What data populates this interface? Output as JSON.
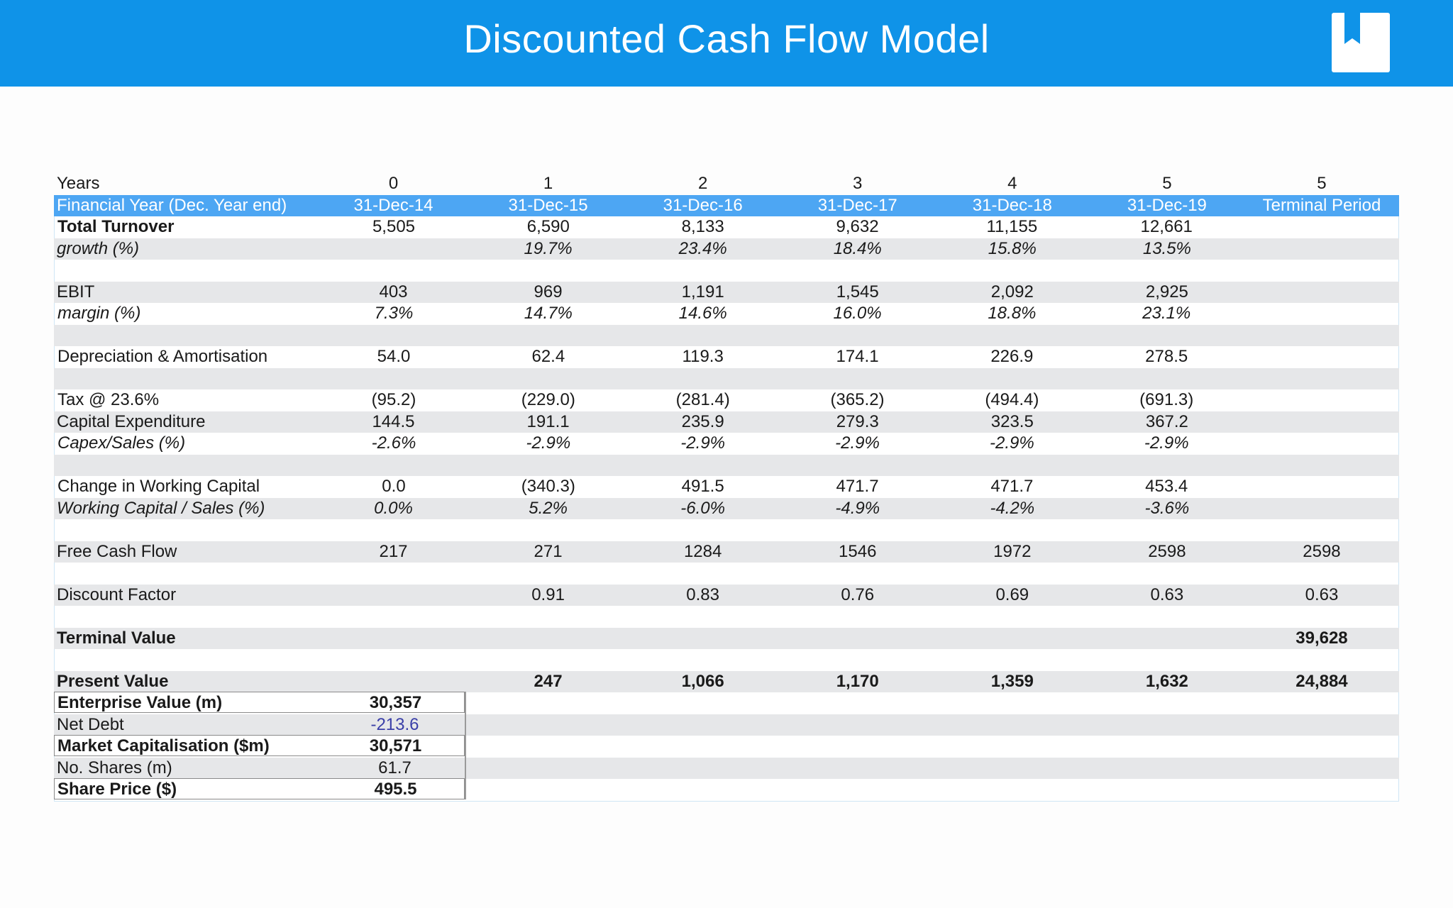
{
  "header": {
    "title": "Discounted Cash Flow Model",
    "logo_icon": "bookmark-book-icon",
    "bar_color": "#0f93e8"
  },
  "table": {
    "years": {
      "label": "Years",
      "cols": [
        "0",
        "1",
        "2",
        "3",
        "4",
        "5",
        "5"
      ]
    },
    "financial_year": {
      "label": "Financial Year (Dec. Year end)",
      "cols": [
        "31-Dec-14",
        "31-Dec-15",
        "31-Dec-16",
        "31-Dec-17",
        "31-Dec-18",
        "31-Dec-19",
        "Terminal Period"
      ]
    },
    "total_turnover": {
      "label": "Total Turnover",
      "cols": [
        "5,505",
        "6,590",
        "8,133",
        "9,632",
        "11,155",
        "12,661",
        ""
      ]
    },
    "growth": {
      "label": "growth (%)",
      "cols": [
        "",
        "19.7%",
        "23.4%",
        "18.4%",
        "15.8%",
        "13.5%",
        ""
      ]
    },
    "ebit": {
      "label": "EBIT",
      "cols": [
        "403",
        "969",
        "1,191",
        "1,545",
        "2,092",
        "2,925",
        ""
      ]
    },
    "margin": {
      "label": "margin (%)",
      "cols": [
        "7.3%",
        "14.7%",
        "14.6%",
        "16.0%",
        "18.8%",
        "23.1%",
        ""
      ]
    },
    "dep_amort": {
      "label": "Depreciation & Amortisation",
      "cols": [
        "54.0",
        "62.4",
        "119.3",
        "174.1",
        "226.9",
        "278.5",
        ""
      ]
    },
    "tax": {
      "label": "Tax @ 23.6%",
      "cols": [
        "(95.2)",
        "(229.0)",
        "(281.4)",
        "(365.2)",
        "(494.4)",
        "(691.3)",
        ""
      ]
    },
    "capex": {
      "label": "Capital Expenditure",
      "cols": [
        "144.5",
        "191.1",
        "235.9",
        "279.3",
        "323.5",
        "367.2",
        ""
      ]
    },
    "capex_sales": {
      "label": "Capex/Sales (%)",
      "cols": [
        "-2.6%",
        "-2.9%",
        "-2.9%",
        "-2.9%",
        "-2.9%",
        "-2.9%",
        ""
      ]
    },
    "change_wc": {
      "label": "Change in Working Capital",
      "cols": [
        "0.0",
        "(340.3)",
        "491.5",
        "471.7",
        "471.7",
        "453.4",
        ""
      ]
    },
    "wc_sales": {
      "label": "Working Capital / Sales (%)",
      "cols": [
        "0.0%",
        "5.2%",
        "-6.0%",
        "-4.9%",
        "-4.2%",
        "-3.6%",
        ""
      ]
    },
    "fcf": {
      "label": "Free Cash Flow",
      "cols": [
        "217",
        "271",
        "1284",
        "1546",
        "1972",
        "2598",
        "2598"
      ]
    },
    "discount_factor": {
      "label": "Discount Factor",
      "cols": [
        "",
        "0.91",
        "0.83",
        "0.76",
        "0.69",
        "0.63",
        "0.63"
      ]
    },
    "terminal_value": {
      "label": "Terminal Value",
      "cols": [
        "",
        "",
        "",
        "",
        "",
        "",
        "39,628"
      ]
    },
    "present_value": {
      "label": "Present Value",
      "cols": [
        "",
        "247",
        "1,066",
        "1,170",
        "1,359",
        "1,632",
        "24,884"
      ]
    },
    "enterprise_value": {
      "label": "Enterprise Value (m)",
      "value": "30,357"
    },
    "net_debt": {
      "label": "Net Debt",
      "value": "-213.6"
    },
    "market_cap": {
      "label": "Market Capitalisation ($m)",
      "value": "30,571"
    },
    "no_shares": {
      "label": "No. Shares (m)",
      "value": "61.7"
    },
    "share_price": {
      "label": " Share Price ($)",
      "value": "495.5"
    }
  }
}
